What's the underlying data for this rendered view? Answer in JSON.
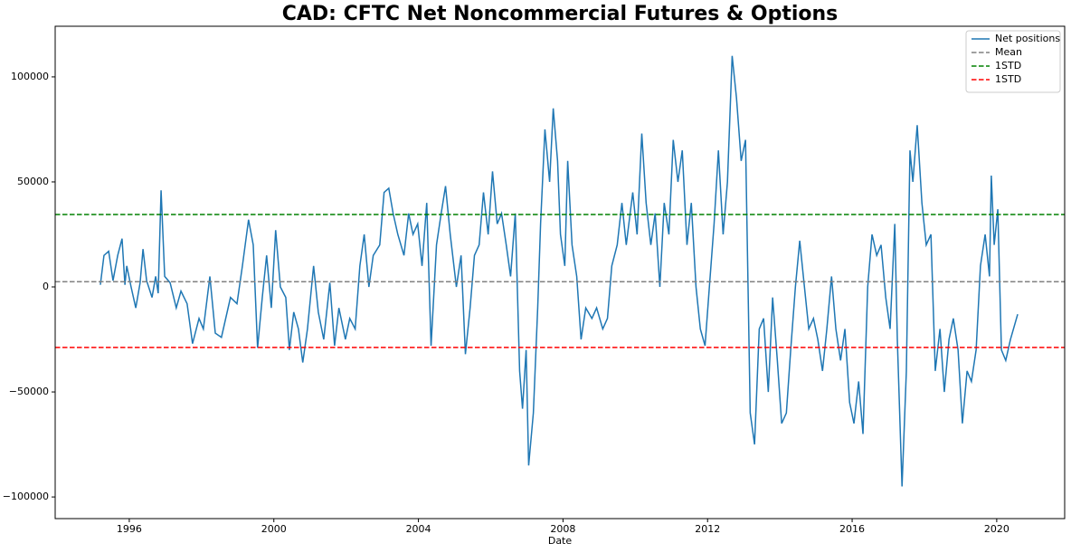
{
  "chart_data": {
    "type": "line",
    "title": "CAD: CFTC Net Noncommercial Futures & Options",
    "x_label": "Date",
    "x": [
      1995.2,
      1995.3,
      1995.43,
      1995.55,
      1995.68,
      1995.8,
      1995.88,
      1995.93,
      1996.05,
      1996.18,
      1996.3,
      1996.38,
      1996.48,
      1996.63,
      1996.73,
      1996.8,
      1996.88,
      1996.98,
      1997.13,
      1997.3,
      1997.43,
      1997.6,
      1997.75,
      1997.93,
      1998.05,
      1998.23,
      1998.38,
      1998.55,
      1998.8,
      1998.98,
      1999.13,
      1999.3,
      1999.43,
      1999.55,
      1999.68,
      1999.8,
      1999.93,
      2000.05,
      2000.18,
      2000.33,
      2000.43,
      2000.55,
      2000.68,
      2000.8,
      2000.93,
      2001.1,
      2001.23,
      2001.38,
      2001.55,
      2001.68,
      2001.8,
      2001.98,
      2002.1,
      2002.25,
      2002.38,
      2002.5,
      2002.63,
      2002.75,
      2002.93,
      2003.05,
      2003.18,
      2003.3,
      2003.43,
      2003.6,
      2003.73,
      2003.85,
      2003.98,
      2004.1,
      2004.23,
      2004.35,
      2004.5,
      2004.63,
      2004.75,
      2004.88,
      2005.05,
      2005.18,
      2005.3,
      2005.43,
      2005.55,
      2005.68,
      2005.8,
      2005.93,
      2006.05,
      2006.18,
      2006.3,
      2006.43,
      2006.55,
      2006.68,
      2006.8,
      2006.88,
      2006.98,
      2007.05,
      2007.18,
      2007.3,
      2007.38,
      2007.5,
      2007.63,
      2007.73,
      2007.85,
      2007.93,
      2008.05,
      2008.13,
      2008.25,
      2008.38,
      2008.5,
      2008.63,
      2008.8,
      2008.93,
      2009.1,
      2009.23,
      2009.35,
      2009.5,
      2009.63,
      2009.75,
      2009.93,
      2010.05,
      2010.18,
      2010.3,
      2010.43,
      2010.55,
      2010.68,
      2010.8,
      2010.93,
      2011.05,
      2011.18,
      2011.3,
      2011.43,
      2011.55,
      2011.68,
      2011.8,
      2011.93,
      2012.05,
      2012.18,
      2012.3,
      2012.43,
      2012.55,
      2012.68,
      2012.8,
      2012.93,
      2013.05,
      2013.18,
      2013.3,
      2013.43,
      2013.55,
      2013.68,
      2013.8,
      2013.93,
      2014.05,
      2014.18,
      2014.3,
      2014.43,
      2014.55,
      2014.68,
      2014.8,
      2014.93,
      2015.05,
      2015.18,
      2015.3,
      2015.43,
      2015.55,
      2015.68,
      2015.8,
      2015.93,
      2016.05,
      2016.18,
      2016.3,
      2016.43,
      2016.55,
      2016.68,
      2016.8,
      2016.93,
      2017.05,
      2017.18,
      2017.25,
      2017.38,
      2017.5,
      2017.6,
      2017.68,
      2017.8,
      2017.93,
      2018.05,
      2018.18,
      2018.3,
      2018.43,
      2018.55,
      2018.68,
      2018.8,
      2018.93,
      2019.05,
      2019.18,
      2019.3,
      2019.43,
      2019.55,
      2019.68,
      2019.8,
      2019.85,
      2019.93,
      2020.03,
      2020.13,
      2020.25,
      2020.38,
      2020.58
    ],
    "series": [
      {
        "name": "Net positions",
        "color": "#1f77b4",
        "values": [
          1000,
          15000,
          17000,
          3000,
          15000,
          23000,
          1000,
          10000,
          0,
          -10000,
          2000,
          18000,
          3000,
          -5000,
          5000,
          -3000,
          46000,
          5000,
          2000,
          -10000,
          -2000,
          -8000,
          -27000,
          -15000,
          -20000,
          5000,
          -22000,
          -24000,
          -5000,
          -8000,
          10000,
          32000,
          20000,
          -29000,
          -5000,
          15000,
          -10000,
          27000,
          0,
          -5000,
          -30000,
          -12000,
          -20000,
          -36000,
          -20000,
          10000,
          -12000,
          -25000,
          2000,
          -28000,
          -10000,
          -25000,
          -15000,
          -20000,
          10000,
          25000,
          0,
          15000,
          20000,
          45000,
          47000,
          35000,
          25000,
          15000,
          35000,
          25000,
          30000,
          10000,
          40000,
          -28000,
          20000,
          35000,
          48000,
          25000,
          0,
          15000,
          -32000,
          -10000,
          15000,
          20000,
          45000,
          25000,
          55000,
          30000,
          35000,
          20000,
          5000,
          35000,
          -40000,
          -58000,
          -30000,
          -85000,
          -60000,
          -10000,
          30000,
          75000,
          50000,
          85000,
          60000,
          25000,
          10000,
          60000,
          20000,
          5000,
          -25000,
          -10000,
          -15000,
          -10000,
          -20000,
          -15000,
          10000,
          20000,
          40000,
          20000,
          45000,
          25000,
          73000,
          40000,
          20000,
          35000,
          0,
          40000,
          25000,
          70000,
          50000,
          65000,
          20000,
          40000,
          0,
          -20000,
          -28000,
          0,
          30000,
          65000,
          25000,
          50000,
          110000,
          90000,
          60000,
          70000,
          -60000,
          -75000,
          -20000,
          -15000,
          -50000,
          -5000,
          -35000,
          -65000,
          -60000,
          -30000,
          0,
          22000,
          0,
          -20000,
          -15000,
          -25000,
          -40000,
          -20000,
          5000,
          -20000,
          -35000,
          -20000,
          -55000,
          -65000,
          -45000,
          -70000,
          0,
          25000,
          15000,
          20000,
          -5000,
          -20000,
          30000,
          -25000,
          -95000,
          -40000,
          65000,
          50000,
          77000,
          40000,
          20000,
          25000,
          -40000,
          -20000,
          -50000,
          -25000,
          -15000,
          -30000,
          -65000,
          -40000,
          -45000,
          -30000,
          10000,
          25000,
          5000,
          53000,
          20000,
          37000,
          -30000,
          -35000,
          -25000,
          -13000
        ]
      }
    ],
    "hlines": [
      {
        "name": "Mean",
        "color": "#808080",
        "value": 2500,
        "style": "dashed"
      },
      {
        "name": "1STD",
        "color": "#008000",
        "value": 34500,
        "style": "dashed"
      },
      {
        "name": "1STD",
        "color": "#ff0000",
        "value": -28800,
        "style": "dashed"
      }
    ],
    "xlim": [
      1993.95,
      2021.88
    ],
    "xticks": [
      1996,
      2000,
      2004,
      2008,
      2012,
      2016,
      2020
    ],
    "ylim": [
      -110300,
      124100
    ],
    "yticks": [
      {
        "value": -100000,
        "label": "−100000"
      },
      {
        "value": -50000,
        "label": "−50000"
      },
      0,
      50000,
      100000
    ],
    "grid": false,
    "legend": "upper right"
  }
}
